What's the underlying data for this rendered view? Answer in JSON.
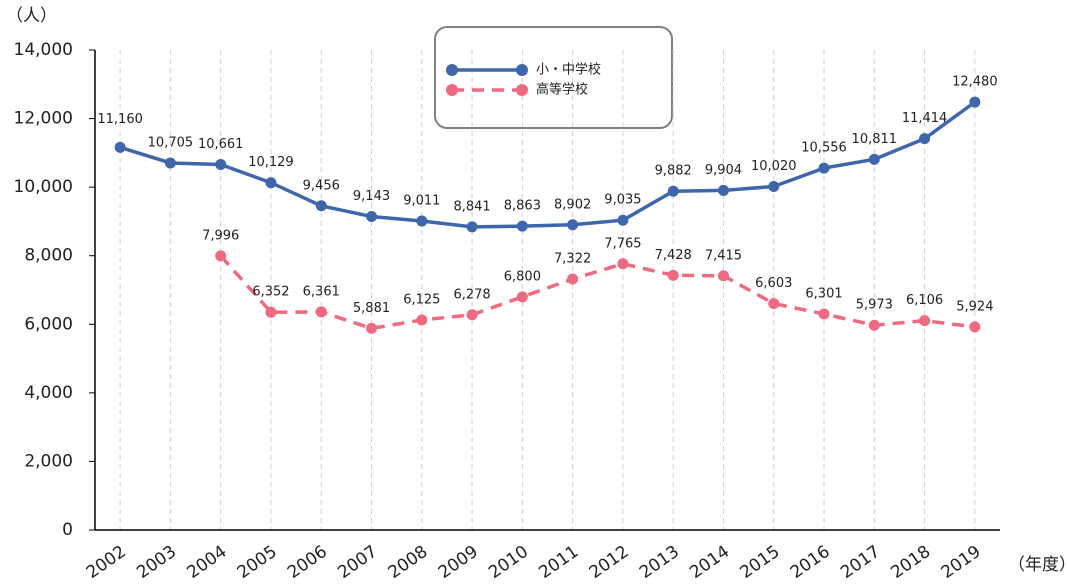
{
  "chart_data": {
    "type": "line",
    "y_label": "（人）",
    "x_label": "（年度）",
    "categories": [
      "2002",
      "2003",
      "2004",
      "2005",
      "2006",
      "2007",
      "2008",
      "2009",
      "2010",
      "2011",
      "2012",
      "2013",
      "2014",
      "2015",
      "2016",
      "2017",
      "2018",
      "2019"
    ],
    "series": [
      {
        "name": "小・中学校",
        "color": "#3d66ad",
        "dashed": false,
        "values": [
          11160,
          10705,
          10661,
          10129,
          9456,
          9143,
          9011,
          8841,
          8863,
          8902,
          9035,
          9882,
          9904,
          10020,
          10556,
          10811,
          11414,
          12480
        ],
        "value_labels": [
          "11,160",
          "10,705",
          "10,661",
          "10,129",
          "9,456",
          "9,143",
          "9,011",
          "8,841",
          "8,863",
          "8,902",
          "9,035",
          "9,882",
          "9,904",
          "10,020",
          "10,556",
          "10,811",
          "11,414",
          "12,480"
        ]
      },
      {
        "name": "高等学校",
        "color": "#f0697f",
        "dashed": true,
        "values": [
          null,
          null,
          7996,
          6352,
          6361,
          5881,
          6125,
          6278,
          6800,
          7322,
          7765,
          7428,
          7415,
          6603,
          6301,
          5973,
          6106,
          5924
        ],
        "value_labels": [
          null,
          null,
          "7,996",
          "6,352",
          "6,361",
          "5,881",
          "6,125",
          "6,278",
          "6,800",
          "7,322",
          "7,765",
          "7,428",
          "7,415",
          "6,603",
          "6,301",
          "5,973",
          "6,106",
          "5,924"
        ]
      }
    ],
    "ylim": [
      0,
      14000
    ],
    "yticks": [
      0,
      {
        "value": 2000,
        "label": "2,000"
      },
      {
        "value": 4000,
        "label": "4,000"
      },
      {
        "value": 6000,
        "label": "6,000"
      },
      {
        "value": 8000,
        "label": "8,000"
      },
      {
        "value": 10000,
        "label": "10,000"
      },
      {
        "value": 12000,
        "label": "12,000"
      },
      {
        "value": 14000,
        "label": "14,000"
      }
    ],
    "grid": "x"
  }
}
